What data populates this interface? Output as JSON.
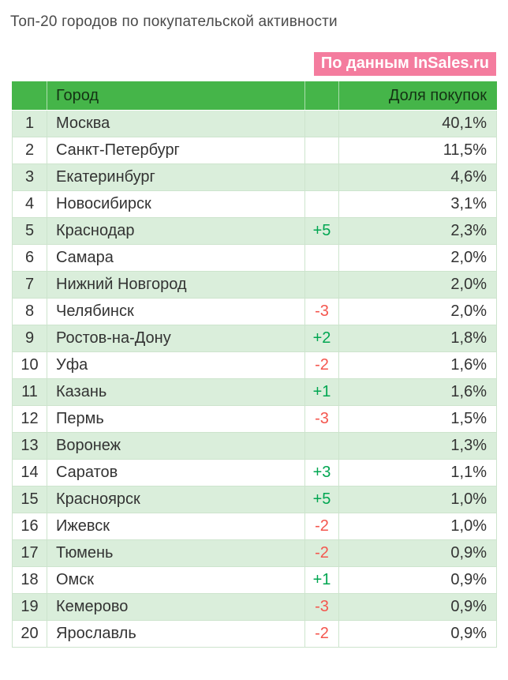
{
  "page_title": "Топ-20 городов по покупательской активности",
  "source_badge": "По данным InSales.ru",
  "table_headers": {
    "rank": "",
    "city": "Город",
    "change": "",
    "share": "Доля покупок"
  },
  "colors": {
    "header_green": "#45b549",
    "row_green": "#daeedb",
    "grid_green": "#cde4cd",
    "positive_green": "#00a651",
    "negative_red": "#f4564e",
    "badge_pink": "#f47c9e",
    "title_gray": "#4a4a4a",
    "text_dark": "#333333"
  },
  "chart_data": {
    "type": "table",
    "title": "Топ-20 городов по покупательской активности",
    "source_badge": "По данным InSales.ru",
    "column_headers": [
      "",
      "Город",
      "",
      "Доля покупок"
    ],
    "rows": [
      {
        "rank": "1",
        "city": "Москва",
        "change": "",
        "share": "40,1%",
        "share_value": 40.1
      },
      {
        "rank": "2",
        "city": "Санкт-Петербург",
        "change": "",
        "share": "11,5%",
        "share_value": 11.5
      },
      {
        "rank": "3",
        "city": "Екатеринбург",
        "change": "",
        "share": "4,6%",
        "share_value": 4.6
      },
      {
        "rank": "4",
        "city": "Новосибирск",
        "change": "",
        "share": "3,1%",
        "share_value": 3.1
      },
      {
        "rank": "5",
        "city": "Краснодар",
        "change": "+5",
        "share": "2,3%",
        "share_value": 2.3
      },
      {
        "rank": "6",
        "city": "Самара",
        "change": "",
        "share": "2,0%",
        "share_value": 2.0
      },
      {
        "rank": "7",
        "city": "Нижний Новгород",
        "change": "",
        "share": "2,0%",
        "share_value": 2.0
      },
      {
        "rank": "8",
        "city": "Челябинск",
        "change": "-3",
        "share": "2,0%",
        "share_value": 2.0
      },
      {
        "rank": "9",
        "city": "Ростов-на-Дону",
        "change": "+2",
        "share": "1,8%",
        "share_value": 1.8
      },
      {
        "rank": "10",
        "city": "Уфа",
        "change": "-2",
        "share": "1,6%",
        "share_value": 1.6
      },
      {
        "rank": "11",
        "city": "Казань",
        "change": "+1",
        "share": "1,6%",
        "share_value": 1.6
      },
      {
        "rank": "12",
        "city": "Пермь",
        "change": "-3",
        "share": "1,5%",
        "share_value": 1.5
      },
      {
        "rank": "13",
        "city": "Воронеж",
        "change": "",
        "share": "1,3%",
        "share_value": 1.3
      },
      {
        "rank": "14",
        "city": "Саратов",
        "change": "+3",
        "share": "1,1%",
        "share_value": 1.1
      },
      {
        "rank": "15",
        "city": "Красноярск",
        "change": "+5",
        "share": "1,0%",
        "share_value": 1.0
      },
      {
        "rank": "16",
        "city": "Ижевск",
        "change": "-2",
        "share": "1,0%",
        "share_value": 1.0
      },
      {
        "rank": "17",
        "city": "Тюмень",
        "change": "-2",
        "share": "0,9%",
        "share_value": 0.9
      },
      {
        "rank": "18",
        "city": "Омск",
        "change": "+1",
        "share": "0,9%",
        "share_value": 0.9
      },
      {
        "rank": "19",
        "city": "Кемерово",
        "change": "-3",
        "share": "0,9%",
        "share_value": 0.9
      },
      {
        "rank": "20",
        "city": "Ярославль",
        "change": "-2",
        "share": "0,9%",
        "share_value": 0.9
      }
    ]
  }
}
